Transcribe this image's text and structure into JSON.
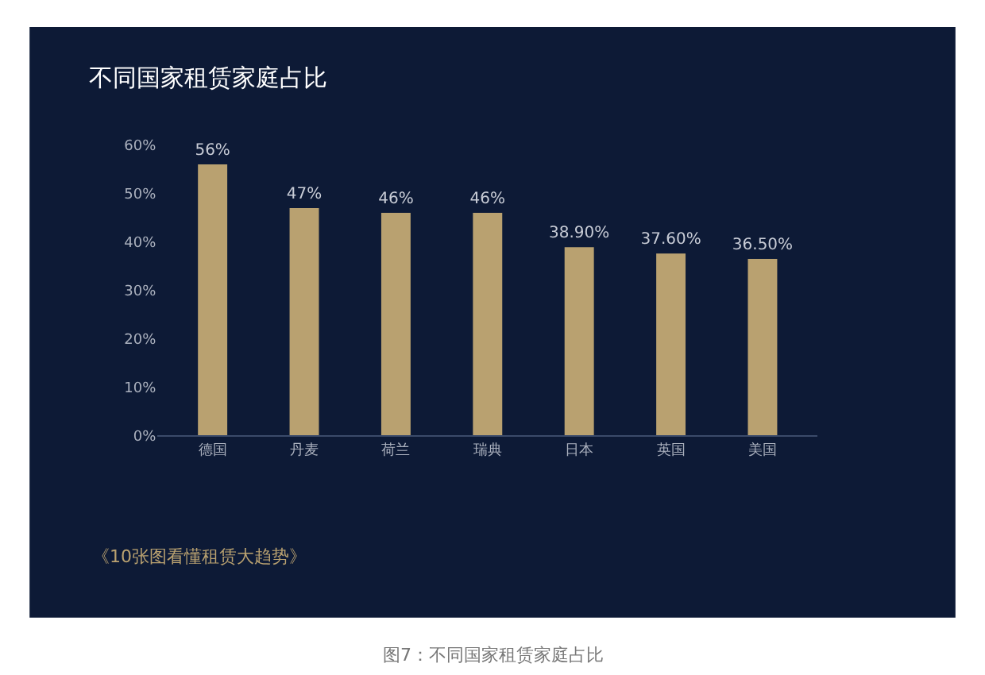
{
  "chart_data": {
    "type": "bar",
    "title": "不同国家租赁家庭占比",
    "categories": [
      "德国",
      "丹麦",
      "荷兰",
      "瑞典",
      "日本",
      "英国",
      "美国"
    ],
    "values": [
      56,
      47,
      46,
      46,
      38.9,
      37.6,
      36.5
    ],
    "value_labels": [
      "56%",
      "47%",
      "46%",
      "46%",
      "38.90%",
      "37.60%",
      "36.50%"
    ],
    "color": "#b9a170",
    "ylim": [
      0,
      60
    ],
    "yticks": [
      {
        "value": 0,
        "label": "0%"
      },
      {
        "value": 10,
        "label": "10%"
      },
      {
        "value": 20,
        "label": "20%"
      },
      {
        "value": 30,
        "label": "30%"
      },
      {
        "value": 40,
        "label": "40%"
      },
      {
        "value": 50,
        "label": "50%"
      },
      {
        "value": 60,
        "label": "60%"
      }
    ],
    "grid": false,
    "annotations": [
      "《10张图看懂租赁大趋势》",
      "图7：不同国家租赁家庭占比"
    ]
  }
}
